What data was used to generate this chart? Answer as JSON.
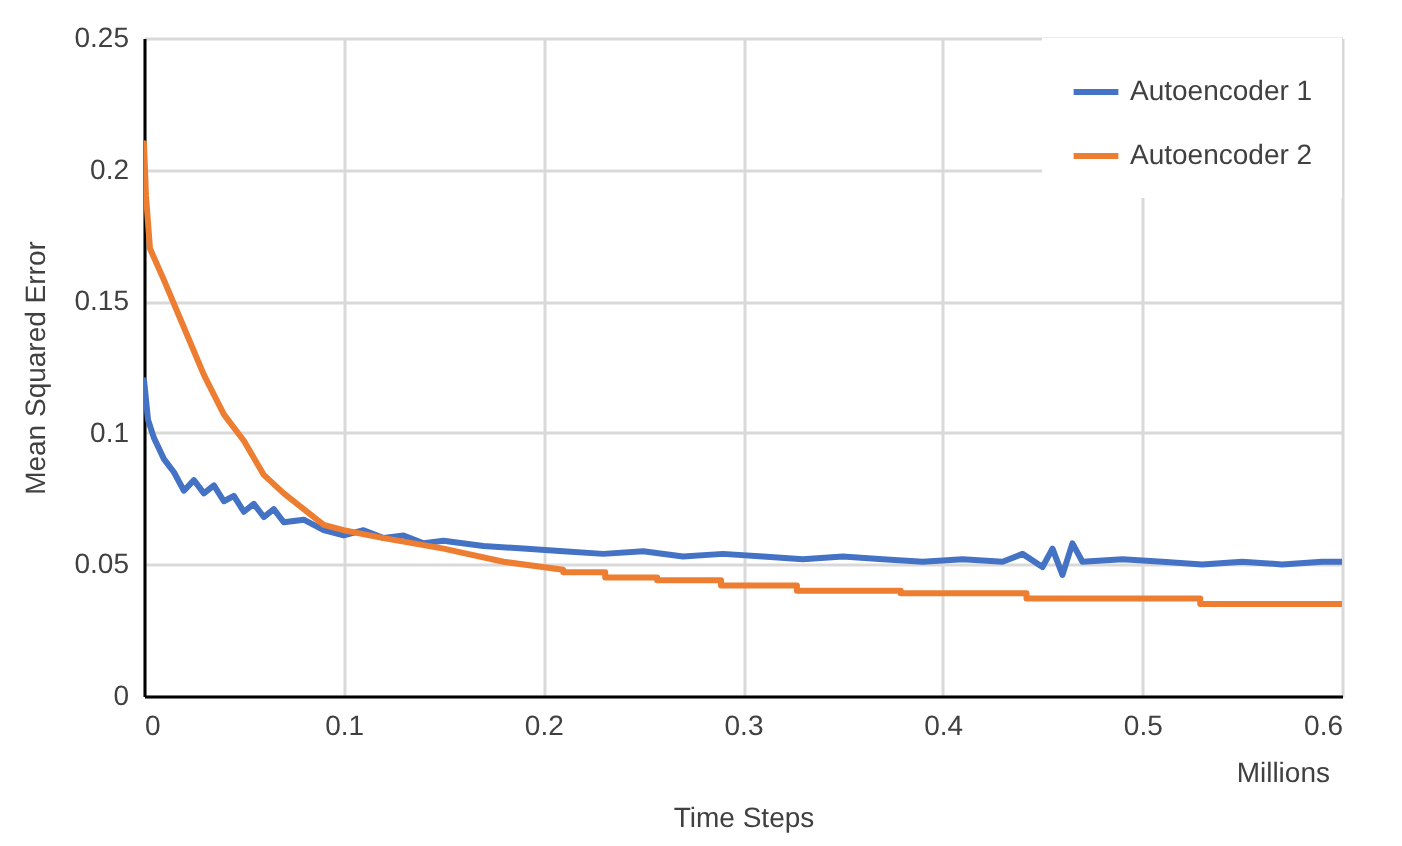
{
  "chart_data": {
    "type": "line",
    "xlabel": "Time Steps",
    "ylabel": "Mean Squared Error",
    "annotations": [
      "Millions"
    ],
    "xlim": [
      0,
      0.6
    ],
    "xticks": [
      0,
      0.1,
      0.2,
      0.3,
      0.4,
      0.5,
      0.6
    ],
    "ylim": [
      0,
      0.25
    ],
    "yticks": [
      0,
      0.05,
      0.1,
      0.15,
      0.2,
      0.25
    ],
    "grid": true,
    "legend": "top right",
    "marker": "none",
    "line_style": "solid",
    "series": [
      {
        "name": "Autoencoder 1",
        "color": "#4472c4",
        "x": [
          0,
          0.002,
          0.005,
          0.01,
          0.015,
          0.02,
          0.025,
          0.03,
          0.035,
          0.04,
          0.045,
          0.05,
          0.055,
          0.06,
          0.065,
          0.07,
          0.08,
          0.09,
          0.1,
          0.11,
          0.12,
          0.13,
          0.14,
          0.15,
          0.17,
          0.19,
          0.21,
          0.23,
          0.25,
          0.27,
          0.29,
          0.31,
          0.33,
          0.35,
          0.37,
          0.39,
          0.41,
          0.43,
          0.44,
          0.45,
          0.455,
          0.46,
          0.465,
          0.47,
          0.49,
          0.51,
          0.53,
          0.55,
          0.57,
          0.59,
          0.6
        ],
        "values": [
          0.12,
          0.105,
          0.098,
          0.09,
          0.085,
          0.078,
          0.082,
          0.077,
          0.08,
          0.074,
          0.076,
          0.07,
          0.073,
          0.068,
          0.071,
          0.066,
          0.067,
          0.063,
          0.061,
          0.063,
          0.06,
          0.061,
          0.058,
          0.059,
          0.057,
          0.056,
          0.055,
          0.054,
          0.055,
          0.053,
          0.054,
          0.053,
          0.052,
          0.053,
          0.052,
          0.051,
          0.052,
          0.051,
          0.054,
          0.049,
          0.056,
          0.046,
          0.058,
          0.051,
          0.052,
          0.051,
          0.05,
          0.051,
          0.05,
          0.051,
          0.051
        ]
      },
      {
        "name": "Autoencoder 2",
        "color": "#ed7d31",
        "x": [
          0,
          0.001,
          0.003,
          0.01,
          0.02,
          0.03,
          0.04,
          0.05,
          0.06,
          0.07,
          0.08,
          0.09,
          0.1,
          0.12,
          0.15,
          0.18,
          0.21,
          0.21,
          0.231,
          0.231,
          0.257,
          0.257,
          0.289,
          0.289,
          0.327,
          0.327,
          0.379,
          0.379,
          0.442,
          0.442,
          0.529,
          0.529,
          0.6
        ],
        "values": [
          0.21,
          0.19,
          0.17,
          0.158,
          0.14,
          0.122,
          0.107,
          0.097,
          0.084,
          0.077,
          0.071,
          0.065,
          0.063,
          0.06,
          0.056,
          0.051,
          0.048,
          0.047,
          0.047,
          0.045,
          0.045,
          0.044,
          0.044,
          0.042,
          0.042,
          0.04,
          0.04,
          0.039,
          0.039,
          0.037,
          0.037,
          0.035,
          0.035
        ]
      }
    ]
  }
}
